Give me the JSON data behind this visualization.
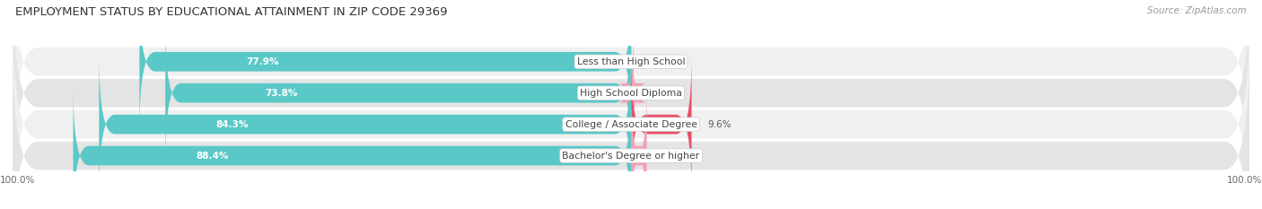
{
  "title": "EMPLOYMENT STATUS BY EDUCATIONAL ATTAINMENT IN ZIP CODE 29369",
  "source": "Source: ZipAtlas.com",
  "categories": [
    "Less than High School",
    "High School Diploma",
    "College / Associate Degree",
    "Bachelor's Degree or higher"
  ],
  "in_labor_force": [
    77.9,
    73.8,
    84.3,
    88.4
  ],
  "unemployed": [
    0.0,
    0.4,
    9.6,
    2.5
  ],
  "labor_force_color": "#5BC8C8",
  "unemployed_color_low": "#F4A0B5",
  "unemployed_color_high": "#E8506A",
  "row_bg_color_odd": "#F0F0F0",
  "row_bg_color_even": "#E4E4E4",
  "left_label": "100.0%",
  "right_label": "100.0%",
  "title_fontsize": 9.5,
  "cat_label_fontsize": 7.8,
  "bar_label_fontsize": 7.5,
  "legend_fontsize": 7.5,
  "source_fontsize": 7.5,
  "axis_label_fontsize": 7.5
}
